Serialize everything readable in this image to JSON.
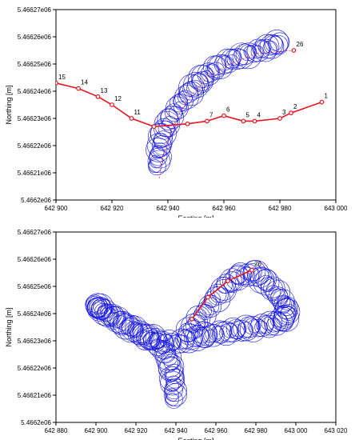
{
  "chart_data": [
    {
      "type": "scatter",
      "xlabel": "Easting [m]",
      "ylabel": "Northing [m]",
      "xlim": [
        642900,
        643000
      ],
      "ylim": [
        5466200,
        5466270
      ],
      "xticks": [
        642900,
        642920,
        642940,
        642960,
        642980,
        643000
      ],
      "xtick_labels": [
        "642 900",
        "642 920",
        "642 940",
        "642 960",
        "642 980",
        "643 000"
      ],
      "yticks": [
        5466200,
        5466210,
        5466220,
        5466230,
        5466240,
        5466250,
        5466260,
        5466270
      ],
      "ytick_labels": [
        "5.4662e06",
        "5.46621e06",
        "5.46622e06",
        "5.46623e06",
        "5.46624e06",
        "5.46625e06",
        "5.46626e06",
        "5.46627e06"
      ],
      "series": [
        {
          "kind": "line",
          "color": "#e8141c",
          "points": [
            {
              "x": 642995,
              "y": 5466236,
              "label": "1"
            },
            {
              "x": 642984,
              "y": 5466232,
              "label": "2"
            },
            {
              "x": 642980,
              "y": 5466230,
              "label": "3"
            },
            {
              "x": 642971,
              "y": 5466229,
              "label": "4"
            },
            {
              "x": 642967,
              "y": 5466229,
              "label": "5"
            },
            {
              "x": 642960,
              "y": 5466231,
              "label": "6"
            },
            {
              "x": 642954,
              "y": 5466229,
              "label": "7"
            },
            {
              "x": 642947,
              "y": 5466228,
              "label": ""
            },
            {
              "x": 642935,
              "y": 5466227,
              "label": ""
            },
            {
              "x": 642927,
              "y": 5466230,
              "label": "11"
            },
            {
              "x": 642920,
              "y": 5466235,
              "label": "12"
            },
            {
              "x": 642915,
              "y": 5466238,
              "label": "13"
            },
            {
              "x": 642908,
              "y": 5466241,
              "label": "14"
            },
            {
              "x": 642900,
              "y": 5466243,
              "label": "15"
            }
          ]
        },
        {
          "kind": "line",
          "color": "#e8141c",
          "points": [
            {
              "x": 642937,
              "y": 5466208,
              "label": ""
            },
            {
              "x": 642938,
              "y": 5466215,
              "label": ""
            },
            {
              "x": 642940,
              "y": 5466222,
              "label": ""
            },
            {
              "x": 642943,
              "y": 5466230,
              "label": ""
            },
            {
              "x": 642948,
              "y": 5466238,
              "label": ""
            },
            {
              "x": 642954,
              "y": 5466245,
              "label": ""
            },
            {
              "x": 642962,
              "y": 5466250,
              "label": ""
            },
            {
              "x": 642972,
              "y": 5466254,
              "label": ""
            },
            {
              "x": 642985,
              "y": 5466255,
              "label": "26"
            }
          ]
        }
      ],
      "circle_path": [
        [
          642936,
          5466212
        ],
        [
          642937,
          5466218
        ],
        [
          642938,
          5466224
        ],
        [
          642941,
          5466230
        ],
        [
          642945,
          5466236
        ],
        [
          642949,
          5466241
        ],
        [
          642953,
          5466245
        ],
        [
          642958,
          5466249
        ],
        [
          642964,
          5466252
        ],
        [
          642970,
          5466254
        ],
        [
          642976,
          5466256
        ],
        [
          642980,
          5466258
        ]
      ],
      "circle_color": "#1414e6"
    },
    {
      "type": "scatter",
      "xlabel": "Easting [m]",
      "ylabel": "Northing [m]",
      "xlim": [
        642880,
        643020
      ],
      "ylim": [
        5466200,
        5466270
      ],
      "xticks": [
        642880,
        642900,
        642920,
        642940,
        642960,
        642980,
        643000,
        643020
      ],
      "xtick_labels": [
        "642 880",
        "642 900",
        "642 920",
        "642 940",
        "642 960",
        "642 980",
        "643 000",
        "643 020"
      ],
      "yticks": [
        5466200,
        5466210,
        5466220,
        5466230,
        5466240,
        5466250,
        5466260,
        5466270
      ],
      "ytick_labels": [
        "5.4662e06",
        "5.46621e06",
        "5.46622e06",
        "5.46623e06",
        "5.46624e06",
        "5.46625e06",
        "5.46626e06",
        "5.46627e06"
      ],
      "series": [
        {
          "kind": "line",
          "color": "#e8141c",
          "points": [
            {
              "x": 642948,
              "y": 5466238,
              "label": ""
            },
            {
              "x": 642956,
              "y": 5466246,
              "label": ""
            },
            {
              "x": 642966,
              "y": 5466252,
              "label": ""
            },
            {
              "x": 642978,
              "y": 5466256,
              "label": "26"
            }
          ]
        }
      ],
      "circle_path": [
        [
          642939,
          5466208
        ],
        [
          642939,
          5466214
        ],
        [
          642938,
          5466220
        ],
        [
          642935,
          5466226
        ],
        [
          642928,
          5466230
        ],
        [
          642920,
          5466234
        ],
        [
          642910,
          5466238
        ],
        [
          642902,
          5466242
        ],
        [
          642900,
          5466243
        ],
        [
          642905,
          5466240
        ],
        [
          642914,
          5466236
        ],
        [
          642924,
          5466232
        ],
        [
          642932,
          5466230
        ],
        [
          642940,
          5466229
        ],
        [
          642948,
          5466231
        ],
        [
          642956,
          5466232
        ],
        [
          642964,
          5466233
        ],
        [
          642972,
          5466234
        ],
        [
          642980,
          5466235
        ],
        [
          642988,
          5466236
        ],
        [
          642995,
          5466238
        ],
        [
          642996,
          5466242
        ],
        [
          642992,
          5466246
        ],
        [
          642986,
          5466251
        ],
        [
          642980,
          5466255
        ],
        [
          642972,
          5466254
        ],
        [
          642965,
          5466250
        ],
        [
          642958,
          5466244
        ],
        [
          642952,
          5466238
        ],
        [
          642946,
          5466233
        ]
      ],
      "circle_color": "#1414e6"
    }
  ]
}
